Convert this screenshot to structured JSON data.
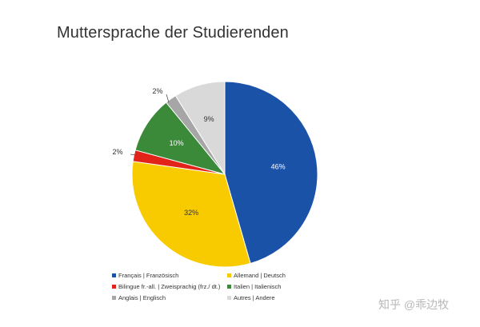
{
  "chart_data": {
    "type": "pie",
    "title": "Muttersprache der Studierenden",
    "slices": [
      {
        "label": "Français | Französisch",
        "value": 46,
        "display": "46%",
        "color": "#1a52a8"
      },
      {
        "label": "Allemand | Deutsch",
        "value": 32,
        "display": "32%",
        "color": "#f7cb00"
      },
      {
        "label": "Bilingue fr.-all.  | Zweisprachig (frz./ dt.)",
        "value": 2,
        "display": "2%",
        "color": "#e2231a"
      },
      {
        "label": "Italien | Italienisch",
        "value": 10,
        "display": "10%",
        "color": "#3a8a39"
      },
      {
        "label": "Anglais | Englisch",
        "value": 2,
        "display": "2%",
        "color": "#a6a6a6"
      },
      {
        "label": "Autres | Andere",
        "value": 9,
        "display": "9%",
        "color": "#d9d9d9"
      }
    ],
    "legend_position": "bottom"
  },
  "watermark": "知乎 @乖边牧"
}
